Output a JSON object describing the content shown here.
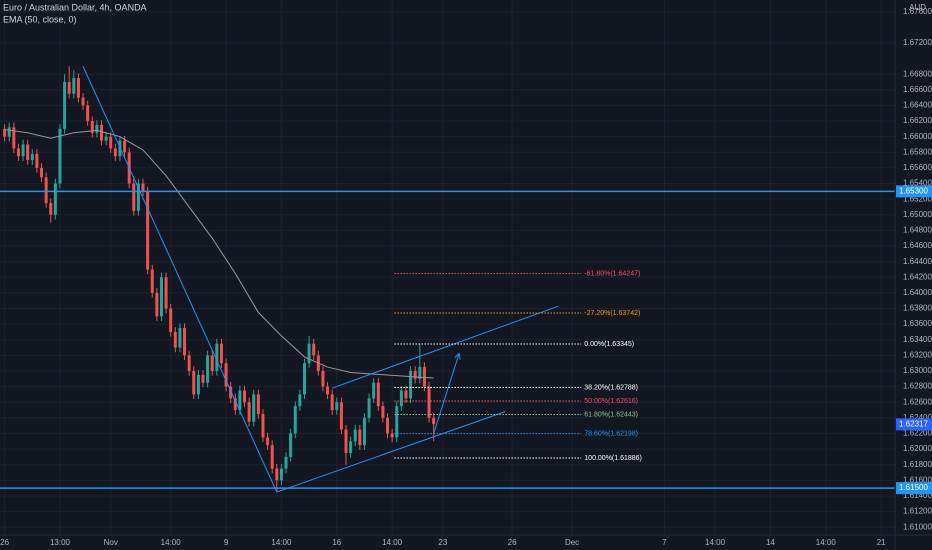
{
  "chart_data": {
    "type": "candlestick",
    "title": "Euro / Australian Dollar, 4h, OANDA",
    "subtitle": "EMA (50, close, 0)",
    "currency": "AUD",
    "up_color": "#26a69a",
    "down_color": "#ef5350",
    "grid": true,
    "xlim": [
      -1,
      193
    ],
    "ylim": [
      1.609,
      1.6775
    ],
    "xticks": [
      {
        "value": 0,
        "label": "26"
      },
      {
        "value": 12,
        "label": "13:00"
      },
      {
        "value": 23,
        "label": "Nov"
      },
      {
        "value": 36,
        "label": "14:00"
      },
      {
        "value": 48,
        "label": "9"
      },
      {
        "value": 60,
        "label": "14:00"
      },
      {
        "value": 72,
        "label": "16"
      },
      {
        "value": 84,
        "label": "14:00"
      },
      {
        "value": 95,
        "label": "23"
      },
      {
        "value": 110,
        "label": "26"
      },
      {
        "value": 123,
        "label": "Dec"
      },
      {
        "value": 143,
        "label": "7"
      },
      {
        "value": 154,
        "label": "14:00"
      },
      {
        "value": 166,
        "label": "14"
      },
      {
        "value": 178,
        "label": "14:00"
      },
      {
        "value": 190,
        "label": "21"
      }
    ],
    "yticks": [
      {
        "value": 1.61,
        "label": "1.61000"
      },
      {
        "value": 1.612,
        "label": "1.61200"
      },
      {
        "value": 1.614,
        "label": "1.61400"
      },
      {
        "value": 1.616,
        "label": "1.61600"
      },
      {
        "value": 1.618,
        "label": "1.61800"
      },
      {
        "value": 1.62,
        "label": "1.62000"
      },
      {
        "value": 1.622,
        "label": "1.62200"
      },
      {
        "value": 1.624,
        "label": "1.62400"
      },
      {
        "value": 1.626,
        "label": "1.62600"
      },
      {
        "value": 1.628,
        "label": "1.62800"
      },
      {
        "value": 1.63,
        "label": "1.63000"
      },
      {
        "value": 1.632,
        "label": "1.63200"
      },
      {
        "value": 1.634,
        "label": "1.63400"
      },
      {
        "value": 1.636,
        "label": "1.63600"
      },
      {
        "value": 1.638,
        "label": "1.63800"
      },
      {
        "value": 1.64,
        "label": "1.64000"
      },
      {
        "value": 1.642,
        "label": "1.64200"
      },
      {
        "value": 1.644,
        "label": "1.64400"
      },
      {
        "value": 1.646,
        "label": "1.64600"
      },
      {
        "value": 1.648,
        "label": "1.64800"
      },
      {
        "value": 1.65,
        "label": "1.65000"
      },
      {
        "value": 1.652,
        "label": "1.65200"
      },
      {
        "value": 1.654,
        "label": "1.65400"
      },
      {
        "value": 1.656,
        "label": "1.65600"
      },
      {
        "value": 1.658,
        "label": "1.65800"
      },
      {
        "value": 1.66,
        "label": "1.66000"
      },
      {
        "value": 1.662,
        "label": "1.66200"
      },
      {
        "value": 1.664,
        "label": "1.66400"
      },
      {
        "value": 1.666,
        "label": "1.66600"
      },
      {
        "value": 1.668,
        "label": "1.66800"
      },
      {
        "value": 1.672,
        "label": "1.67200"
      },
      {
        "value": 1.676,
        "label": "1.67600"
      }
    ],
    "open": [
      1.661,
      1.66,
      1.6612,
      1.6585,
      1.6575,
      1.659,
      1.657,
      1.6578,
      1.656,
      1.6548,
      1.6515,
      1.65,
      1.654,
      1.661,
      1.667,
      1.6655,
      1.6675,
      1.665,
      1.664,
      1.662,
      1.6605,
      1.6615,
      1.6595,
      1.66,
      1.6585,
      1.6575,
      1.6595,
      1.658,
      1.654,
      1.6505,
      1.654,
      1.653,
      1.643,
      1.64,
      1.637,
      1.642,
      1.638,
      1.635,
      1.633,
      1.6355,
      1.632,
      1.63,
      1.627,
      1.6295,
      1.6285,
      1.632,
      1.63,
      1.6335,
      1.631,
      1.628,
      1.6265,
      1.625,
      1.6275,
      1.626,
      1.6235,
      1.627,
      1.6245,
      1.6215,
      1.6205,
      1.6175,
      1.616,
      1.6175,
      1.619,
      1.622,
      1.6255,
      1.627,
      1.631,
      1.6335,
      1.632,
      1.63,
      1.628,
      1.627,
      1.625,
      1.626,
      1.6225,
      1.6195,
      1.621,
      1.6225,
      1.6205,
      1.624,
      1.6265,
      1.6285,
      1.6255,
      1.624,
      1.622,
      1.6215,
      1.6255,
      1.6275,
      1.6265,
      1.63,
      1.629,
      1.6305,
      1.628,
      1.624
    ],
    "high": [
      1.6616,
      1.6618,
      1.6618,
      1.6591,
      1.6596,
      1.6596,
      1.6584,
      1.6584,
      1.6566,
      1.6554,
      1.6521,
      1.6546,
      1.6616,
      1.668,
      1.669,
      1.6685,
      1.6681,
      1.6656,
      1.6646,
      1.6626,
      1.6621,
      1.6621,
      1.6606,
      1.6606,
      1.6591,
      1.6601,
      1.6601,
      1.6586,
      1.6546,
      1.6546,
      1.6546,
      1.6536,
      1.6436,
      1.6406,
      1.6426,
      1.6426,
      1.6386,
      1.6356,
      1.6361,
      1.6361,
      1.6326,
      1.6306,
      1.6301,
      1.6301,
      1.6326,
      1.6326,
      1.6341,
      1.6341,
      1.6316,
      1.6286,
      1.6271,
      1.6281,
      1.6281,
      1.6266,
      1.6276,
      1.6276,
      1.6251,
      1.6221,
      1.6211,
      1.6181,
      1.6181,
      1.6196,
      1.6226,
      1.6261,
      1.6276,
      1.6316,
      1.6345,
      1.6341,
      1.6326,
      1.6306,
      1.6286,
      1.6276,
      1.6266,
      1.6266,
      1.6231,
      1.6216,
      1.6231,
      1.6231,
      1.6246,
      1.6271,
      1.6291,
      1.6291,
      1.6261,
      1.6246,
      1.6226,
      1.6261,
      1.6281,
      1.6281,
      1.6306,
      1.6306,
      1.6335,
      1.6311,
      1.6286,
      1.6246
    ],
    "low": [
      1.6594,
      1.6594,
      1.6579,
      1.6569,
      1.6569,
      1.6564,
      1.6564,
      1.6554,
      1.6542,
      1.6509,
      1.649,
      1.6494,
      1.6534,
      1.6604,
      1.6649,
      1.6649,
      1.6644,
      1.6634,
      1.6614,
      1.6599,
      1.6599,
      1.6589,
      1.6589,
      1.6579,
      1.6569,
      1.6569,
      1.6574,
      1.6534,
      1.6499,
      1.6499,
      1.6524,
      1.6424,
      1.6394,
      1.6364,
      1.6364,
      1.6374,
      1.6344,
      1.6324,
      1.6324,
      1.6314,
      1.6294,
      1.6264,
      1.6264,
      1.6279,
      1.6279,
      1.6294,
      1.6294,
      1.6304,
      1.6274,
      1.6259,
      1.6244,
      1.6244,
      1.6254,
      1.6229,
      1.6229,
      1.6239,
      1.6209,
      1.6199,
      1.6169,
      1.6145,
      1.6154,
      1.6169,
      1.6184,
      1.6214,
      1.6249,
      1.6264,
      1.6304,
      1.6314,
      1.6294,
      1.6274,
      1.6264,
      1.6244,
      1.6244,
      1.6219,
      1.618,
      1.6189,
      1.6204,
      1.6199,
      1.6199,
      1.6234,
      1.6259,
      1.6249,
      1.6234,
      1.6214,
      1.6209,
      1.6209,
      1.6249,
      1.6259,
      1.6259,
      1.6284,
      1.6284,
      1.6274,
      1.6234,
      1.621
    ],
    "close": [
      1.66,
      1.6612,
      1.6585,
      1.6575,
      1.659,
      1.657,
      1.6578,
      1.656,
      1.6548,
      1.6515,
      1.65,
      1.654,
      1.661,
      1.667,
      1.6655,
      1.6675,
      1.665,
      1.664,
      1.662,
      1.6605,
      1.6615,
      1.6595,
      1.66,
      1.6585,
      1.6575,
      1.6595,
      1.658,
      1.654,
      1.6505,
      1.654,
      1.653,
      1.643,
      1.64,
      1.637,
      1.642,
      1.638,
      1.635,
      1.633,
      1.6355,
      1.632,
      1.63,
      1.627,
      1.6295,
      1.6285,
      1.632,
      1.63,
      1.6335,
      1.631,
      1.628,
      1.6265,
      1.625,
      1.6275,
      1.626,
      1.6235,
      1.627,
      1.6245,
      1.6215,
      1.6205,
      1.6175,
      1.616,
      1.6175,
      1.619,
      1.622,
      1.6255,
      1.627,
      1.631,
      1.6335,
      1.632,
      1.63,
      1.628,
      1.627,
      1.625,
      1.626,
      1.6225,
      1.6195,
      1.621,
      1.6225,
      1.6205,
      1.624,
      1.6265,
      1.6285,
      1.6255,
      1.624,
      1.622,
      1.6215,
      1.6255,
      1.6275,
      1.6265,
      1.63,
      1.629,
      1.6305,
      1.628,
      1.624,
      1.6232
    ],
    "ema": {
      "color": "#9598a1",
      "x": [
        0,
        5,
        10,
        15,
        20,
        25,
        30,
        35,
        40,
        45,
        50,
        55,
        60,
        65,
        70,
        75,
        80,
        85,
        90,
        93
      ],
      "values": [
        1.6609,
        1.6605,
        1.6598,
        1.6605,
        1.6608,
        1.66,
        1.6583,
        1.655,
        1.651,
        1.647,
        1.6425,
        1.6375,
        1.6345,
        1.6318,
        1.6305,
        1.6298,
        1.6296,
        1.6294,
        1.6292,
        1.6291
      ]
    },
    "hlines": [
      {
        "value": 1.653,
        "label": "1.65300",
        "color": "#2196f3"
      },
      {
        "value": 1.615,
        "label": "1.61500",
        "color": "#2196f3"
      }
    ],
    "last_price": {
      "value": 1.62317,
      "label": "1.62317",
      "color": "#2962ff"
    },
    "trendlines": [
      {
        "x": [
          17,
          59
        ],
        "y": [
          1.669,
          1.6145
        ],
        "color": "#2196f3"
      },
      {
        "x": [
          59,
          108.5
        ],
        "y": [
          1.6145,
          1.6248
        ],
        "color": "#2196f3"
      },
      {
        "x": [
          71,
          120
        ],
        "y": [
          1.6278,
          1.6383
        ],
        "color": "#2196f3"
      },
      {
        "x": [
          93,
          98.5
        ],
        "y": [
          1.622,
          1.6322
        ],
        "color": "#2196f3"
      }
    ],
    "fib": {
      "x": [
        84.5,
        125
      ],
      "levels": [
        {
          "value": 1.64247,
          "label": "-61.80%(1.64247)",
          "color": "#f7525f"
        },
        {
          "value": 1.63742,
          "label": "-27.20%(1.63742)",
          "color": "#ff9800"
        },
        {
          "value": 1.63345,
          "label": "0.00%(1.63345)",
          "color": "#ffffff"
        },
        {
          "value": 1.62788,
          "label": "38.20%(1.62788)",
          "color": "#ffffff"
        },
        {
          "value": 1.62616,
          "label": "50.00%(1.62616)",
          "color": "#f7525f"
        },
        {
          "value": 1.62443,
          "label": "61.80%(1.62443)",
          "color": "#81c784"
        },
        {
          "value": 1.62198,
          "label": "78.60%(1.62198)",
          "color": "#2196f3"
        },
        {
          "value": 1.61886,
          "label": "100.00%(1.61886)",
          "color": "#ffffff"
        }
      ]
    }
  }
}
